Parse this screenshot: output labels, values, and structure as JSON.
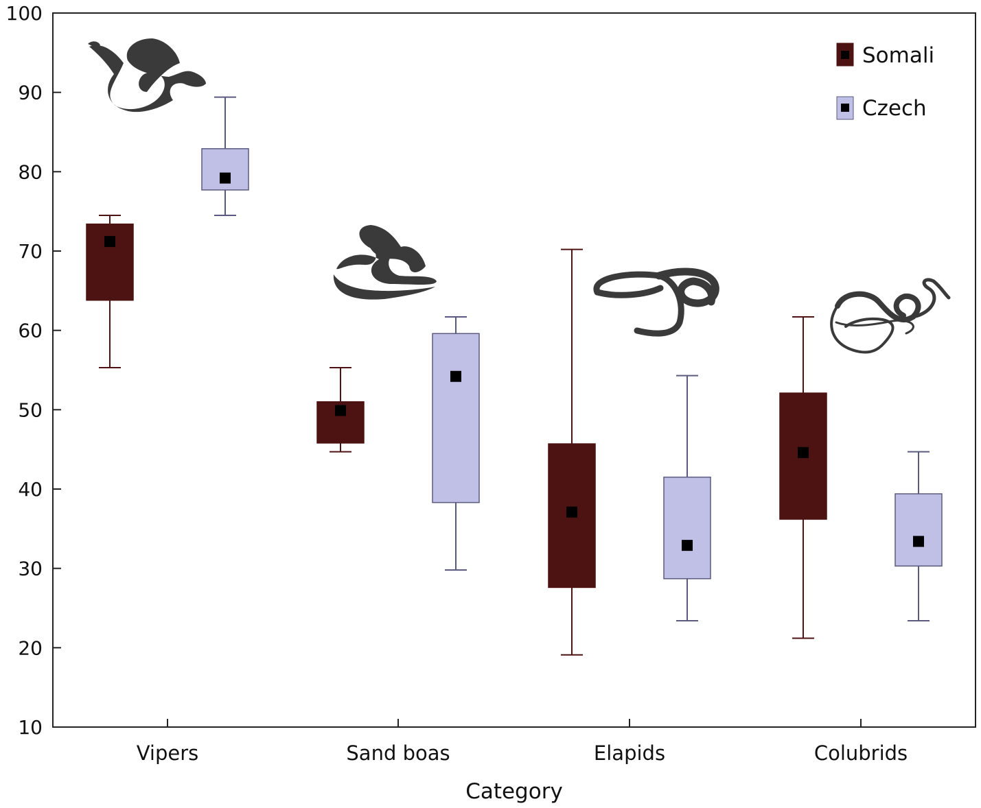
{
  "chart_data": {
    "type": "box",
    "xlabel": "Category",
    "ylabel": "",
    "ylim": [
      10,
      100
    ],
    "yticks": [
      10,
      20,
      30,
      40,
      50,
      60,
      70,
      80,
      90,
      100
    ],
    "grid": false,
    "legend_position": "top-right",
    "categories": [
      "Vipers",
      "Sand boas",
      "Elapids",
      "Colubrids"
    ],
    "series": [
      {
        "name": "Somali",
        "color": "#4d1212",
        "boxes": [
          {
            "min": 55.3,
            "q1": 63.8,
            "mean": 71.2,
            "q3": 73.4,
            "max": 74.5
          },
          {
            "min": 44.7,
            "q1": 45.8,
            "mean": 49.9,
            "q3": 51.0,
            "max": 55.3
          },
          {
            "min": 19.1,
            "q1": 27.6,
            "mean": 37.1,
            "q3": 45.7,
            "max": 70.2
          },
          {
            "min": 21.2,
            "q1": 36.2,
            "mean": 44.6,
            "q3": 52.1,
            "max": 61.7
          }
        ]
      },
      {
        "name": "Czech",
        "color": "#c0c0e6",
        "boxes": [
          {
            "min": 74.5,
            "q1": 77.7,
            "mean": 79.2,
            "q3": 82.9,
            "max": 89.4
          },
          {
            "min": 29.8,
            "q1": 38.3,
            "mean": 54.2,
            "q3": 59.6,
            "max": 61.7
          },
          {
            "min": 23.4,
            "q1": 28.7,
            "mean": 32.9,
            "q3": 41.5,
            "max": 54.3
          },
          {
            "min": 23.4,
            "q1": 30.3,
            "mean": 33.4,
            "q3": 39.4,
            "max": 44.7
          }
        ]
      }
    ],
    "icons": [
      "viper-silhouette-icon",
      "sand-boa-silhouette-icon",
      "elapid-silhouette-icon",
      "colubrid-silhouette-icon"
    ]
  }
}
